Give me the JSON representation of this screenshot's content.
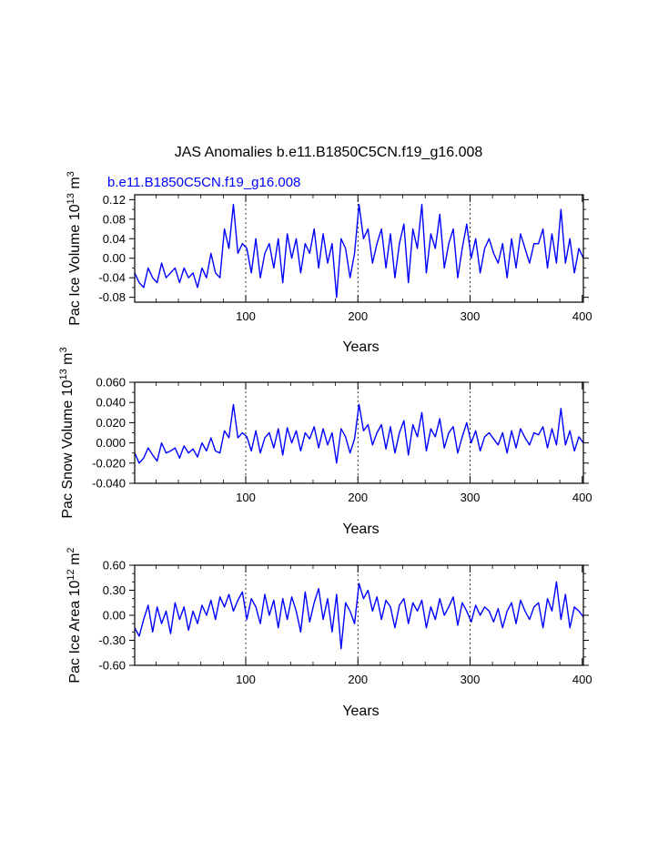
{
  "page": {
    "main_title": "JAS Anomalies b.e11.B1850C5CN.f19_g16.008",
    "case_label": "b.e11.B1850C5CN.f19_g16.008"
  },
  "colors": {
    "series": "#0000ff",
    "axis": "#000000",
    "case_label": "#0000ff",
    "grid": "#000000"
  },
  "chart_data": [
    {
      "type": "line",
      "title": "",
      "ylabel_prefix": "Pac Ice Volume 10",
      "ylabel_exp": "13",
      "ylabel_unit": " m",
      "ylabel_unit_exp": "3",
      "xlabel": "Years",
      "xlim": [
        1,
        401
      ],
      "ylim": [
        -0.09,
        0.13
      ],
      "xticks": [
        100,
        200,
        300,
        400
      ],
      "xtick_labels": [
        "100",
        "200",
        "300",
        "400"
      ],
      "yticks": [
        -0.08,
        -0.04,
        0.0,
        0.04,
        0.08,
        0.12
      ],
      "ytick_labels": [
        "-0.08",
        "-0.04",
        "0.00",
        "0.04",
        "0.08",
        "0.12"
      ],
      "y_minor_step": 0.02,
      "vgrid": [
        100,
        200,
        300
      ],
      "series": [
        {
          "name": "b.e11.B1850C5CN.f19_g16.008",
          "x_start": 1,
          "x_step": 4,
          "values": [
            -0.03,
            -0.05,
            -0.06,
            -0.02,
            -0.04,
            -0.05,
            -0.01,
            -0.04,
            -0.03,
            -0.02,
            -0.05,
            -0.02,
            -0.04,
            -0.03,
            -0.06,
            -0.02,
            -0.04,
            0.01,
            -0.03,
            -0.04,
            0.06,
            0.02,
            0.11,
            0.01,
            0.03,
            0.02,
            -0.03,
            0.04,
            -0.04,
            0.01,
            0.03,
            -0.02,
            0.04,
            -0.05,
            0.05,
            0.0,
            0.04,
            -0.03,
            0.03,
            0.01,
            0.06,
            -0.02,
            0.05,
            -0.01,
            0.03,
            -0.08,
            0.04,
            0.02,
            -0.04,
            0.01,
            0.11,
            0.04,
            0.06,
            -0.01,
            0.03,
            0.06,
            -0.02,
            0.05,
            -0.04,
            0.03,
            0.07,
            -0.05,
            0.06,
            0.02,
            0.11,
            -0.03,
            0.05,
            0.02,
            0.09,
            -0.02,
            0.03,
            0.06,
            -0.04,
            0.02,
            0.07,
            0.0,
            0.04,
            -0.03,
            0.02,
            0.04,
            0.01,
            -0.01,
            0.03,
            -0.04,
            0.04,
            -0.02,
            0.05,
            0.02,
            -0.01,
            0.03,
            0.03,
            0.06,
            -0.02,
            0.05,
            -0.01,
            0.1,
            -0.01,
            0.04,
            -0.03,
            0.02,
            0.0
          ]
        }
      ]
    },
    {
      "type": "line",
      "title": "",
      "ylabel_prefix": "Pac Snow Volume 10",
      "ylabel_exp": "13",
      "ylabel_unit": " m",
      "ylabel_unit_exp": "3",
      "xlabel": "Years",
      "xlim": [
        1,
        401
      ],
      "ylim": [
        -0.04,
        0.06
      ],
      "xticks": [
        100,
        200,
        300,
        400
      ],
      "xtick_labels": [
        "100",
        "200",
        "300",
        "400"
      ],
      "yticks": [
        -0.04,
        -0.02,
        0.0,
        0.02,
        0.04,
        0.06
      ],
      "ytick_labels": [
        "-0.040",
        "-0.020",
        "0.000",
        "0.020",
        "0.040",
        "0.060"
      ],
      "y_minor_step": 0.01,
      "vgrid": [
        100,
        200,
        300
      ],
      "series": [
        {
          "name": "b.e11.B1850C5CN.f19_g16.008",
          "x_start": 1,
          "x_step": 4,
          "values": [
            -0.01,
            -0.02,
            -0.015,
            -0.005,
            -0.012,
            -0.018,
            0.0,
            -0.01,
            -0.008,
            -0.005,
            -0.015,
            -0.003,
            -0.01,
            -0.006,
            -0.014,
            0.0,
            -0.008,
            0.005,
            -0.008,
            -0.01,
            0.012,
            0.005,
            0.038,
            0.005,
            0.01,
            0.006,
            -0.008,
            0.012,
            -0.01,
            0.005,
            0.01,
            -0.005,
            0.014,
            -0.012,
            0.015,
            0.0,
            0.012,
            -0.008,
            0.01,
            0.004,
            0.016,
            -0.005,
            0.014,
            -0.002,
            0.01,
            -0.02,
            0.014,
            0.006,
            -0.01,
            0.004,
            0.038,
            0.012,
            0.018,
            -0.002,
            0.01,
            0.018,
            -0.006,
            0.016,
            -0.01,
            0.01,
            0.022,
            -0.012,
            0.018,
            0.006,
            0.03,
            -0.008,
            0.014,
            0.006,
            0.024,
            -0.005,
            0.01,
            0.016,
            -0.01,
            0.006,
            0.02,
            0.0,
            0.012,
            -0.008,
            0.006,
            0.01,
            0.004,
            -0.002,
            0.01,
            -0.01,
            0.012,
            -0.005,
            0.014,
            0.005,
            -0.002,
            0.01,
            0.008,
            0.016,
            -0.005,
            0.014,
            -0.002,
            0.034,
            -0.002,
            0.012,
            -0.008,
            0.006,
            0.0
          ]
        }
      ]
    },
    {
      "type": "line",
      "title": "",
      "ylabel_prefix": "Pac Ice Area 10",
      "ylabel_exp": "12",
      "ylabel_unit": " m",
      "ylabel_unit_exp": "2",
      "xlabel": "Years",
      "xlim": [
        1,
        401
      ],
      "ylim": [
        -0.6,
        0.6
      ],
      "xticks": [
        100,
        200,
        300,
        400
      ],
      "xtick_labels": [
        "100",
        "200",
        "300",
        "400"
      ],
      "yticks": [
        -0.6,
        -0.3,
        0.0,
        0.3,
        0.6
      ],
      "ytick_labels": [
        "-0.60",
        "-0.30",
        "0.00",
        "0.30",
        "0.60"
      ],
      "y_minor_step": 0.1,
      "vgrid": [
        100,
        200,
        300
      ],
      "series": [
        {
          "name": "b.e11.B1850C5CN.f19_g16.008",
          "x_start": 1,
          "x_step": 4,
          "values": [
            -0.15,
            -0.25,
            -0.05,
            0.12,
            -0.2,
            0.1,
            -0.1,
            0.05,
            -0.22,
            0.15,
            -0.05,
            0.1,
            -0.18,
            0.05,
            -0.1,
            0.12,
            0.0,
            0.18,
            -0.05,
            0.22,
            0.1,
            0.25,
            0.05,
            0.18,
            0.28,
            -0.05,
            0.2,
            0.1,
            -0.1,
            0.25,
            0.0,
            0.18,
            -0.15,
            0.2,
            -0.05,
            0.22,
            0.05,
            -0.2,
            0.28,
            -0.08,
            0.15,
            0.32,
            -0.05,
            0.2,
            -0.2,
            0.25,
            -0.4,
            0.15,
            0.05,
            -0.1,
            0.38,
            0.2,
            0.3,
            0.05,
            0.22,
            -0.05,
            0.18,
            0.1,
            -0.15,
            0.12,
            0.2,
            -0.1,
            0.15,
            0.05,
            0.18,
            -0.15,
            0.1,
            -0.05,
            0.2,
            0.0,
            0.1,
            0.22,
            -0.12,
            0.15,
            0.05,
            -0.08,
            0.12,
            0.0,
            0.1,
            0.05,
            -0.08,
            0.08,
            -0.15,
            0.05,
            0.15,
            -0.1,
            0.18,
            0.05,
            -0.05,
            0.1,
            0.15,
            -0.15,
            0.2,
            0.05,
            0.4,
            -0.05,
            0.25,
            -0.15,
            0.1,
            0.05,
            -0.02
          ]
        }
      ]
    }
  ]
}
